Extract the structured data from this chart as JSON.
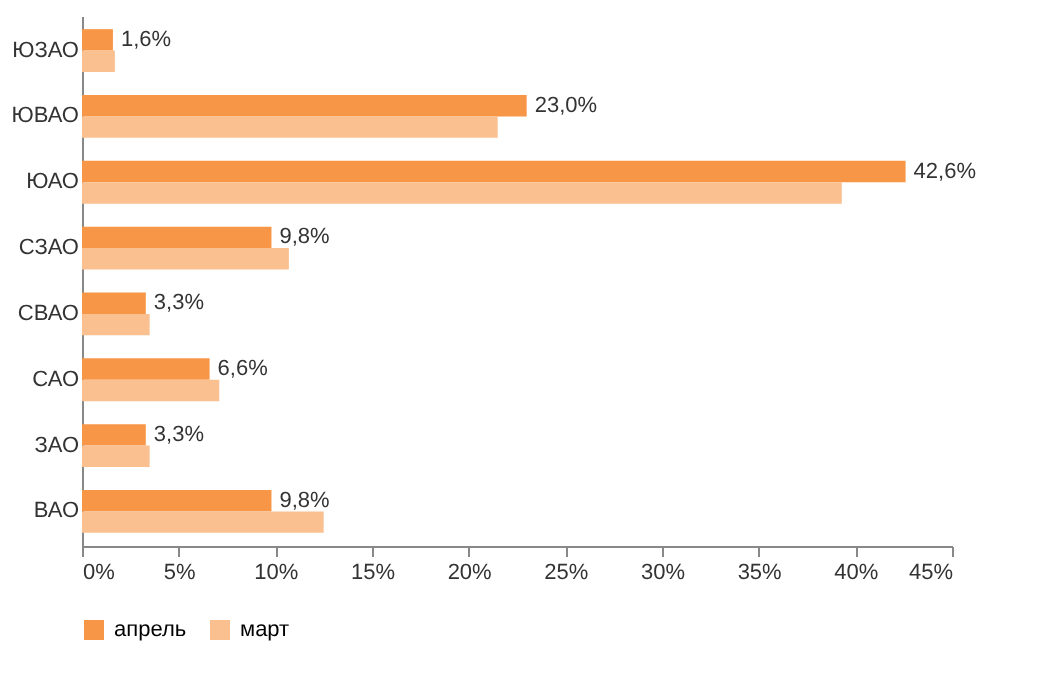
{
  "chart_data": {
    "type": "bar",
    "orientation": "horizontal",
    "categories": [
      "ЮЗАО",
      "ЮВАО",
      "ЮАО",
      "СЗАО",
      "СВАО",
      "САО",
      "ЗАО",
      "ВАО"
    ],
    "series": [
      {
        "name": "апрель",
        "color": "#f79646",
        "values": [
          1.6,
          23.0,
          42.6,
          9.8,
          3.3,
          6.6,
          3.3,
          9.8
        ],
        "value_labels": [
          "1,6%",
          "23,0%",
          "42,6%",
          "9,8%",
          "3,3%",
          "6,6%",
          "3,3%",
          "9,8%"
        ]
      },
      {
        "name": "март",
        "color": "#fac090",
        "values": [
          1.7,
          21.5,
          39.3,
          10.7,
          3.5,
          7.1,
          3.5,
          12.5
        ]
      }
    ],
    "xlim": [
      0,
      45
    ],
    "xticks": [
      {
        "value": 0,
        "label": "0%"
      },
      {
        "value": 5,
        "label": "5%"
      },
      {
        "value": 10,
        "label": "10%"
      },
      {
        "value": 15,
        "label": "15%"
      },
      {
        "value": 20,
        "label": "20%"
      },
      {
        "value": 25,
        "label": "25%"
      },
      {
        "value": 30,
        "label": "30%"
      },
      {
        "value": 35,
        "label": "35%"
      },
      {
        "value": 40,
        "label": "40%"
      },
      {
        "value": 45,
        "label": "45%"
      }
    ],
    "grid": false,
    "legend": "bottom"
  }
}
